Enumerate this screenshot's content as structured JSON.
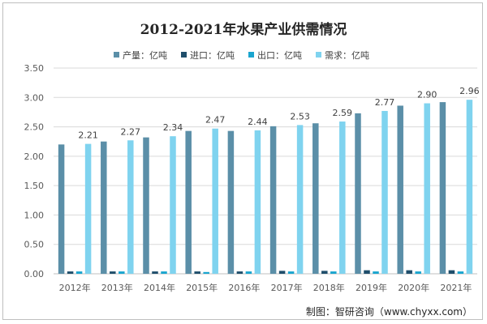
{
  "chart_data": {
    "type": "bar",
    "title": "2012-2021年水果产业供需情况",
    "categories": [
      "2012年",
      "2013年",
      "2014年",
      "2015年",
      "2016年",
      "2017年",
      "2018年",
      "2019年",
      "2020年",
      "2021年"
    ],
    "ylim": [
      0,
      3.5
    ],
    "yticks": [
      "0.00",
      "0.50",
      "1.00",
      "1.50",
      "2.00",
      "2.50",
      "3.00",
      "3.50"
    ],
    "grid": true,
    "legend_position": "top",
    "series": [
      {
        "name": "产量：亿吨",
        "color": "#5b8fa8",
        "values": [
          2.2,
          2.25,
          2.32,
          2.43,
          2.43,
          2.51,
          2.56,
          2.73,
          2.86,
          2.92
        ]
      },
      {
        "name": "进口：亿吨",
        "color": "#1f4e6b",
        "values": [
          0.04,
          0.04,
          0.04,
          0.04,
          0.04,
          0.05,
          0.05,
          0.06,
          0.06,
          0.06
        ]
      },
      {
        "name": "出口：亿吨",
        "color": "#1aa5cf",
        "values": [
          0.04,
          0.04,
          0.04,
          0.03,
          0.04,
          0.04,
          0.04,
          0.04,
          0.04,
          0.04
        ]
      },
      {
        "name": "需求：亿吨",
        "color": "#7fd3ef",
        "values": [
          2.21,
          2.27,
          2.34,
          2.47,
          2.44,
          2.53,
          2.59,
          2.77,
          2.9,
          2.96
        ]
      }
    ],
    "data_labels": [
      "2.21",
      "2.27",
      "2.34",
      "2.47",
      "2.44",
      "2.53",
      "2.59",
      "2.77",
      "2.90",
      "2.96"
    ]
  },
  "source_text": "制图：智研咨询（www.chyxx.com）"
}
